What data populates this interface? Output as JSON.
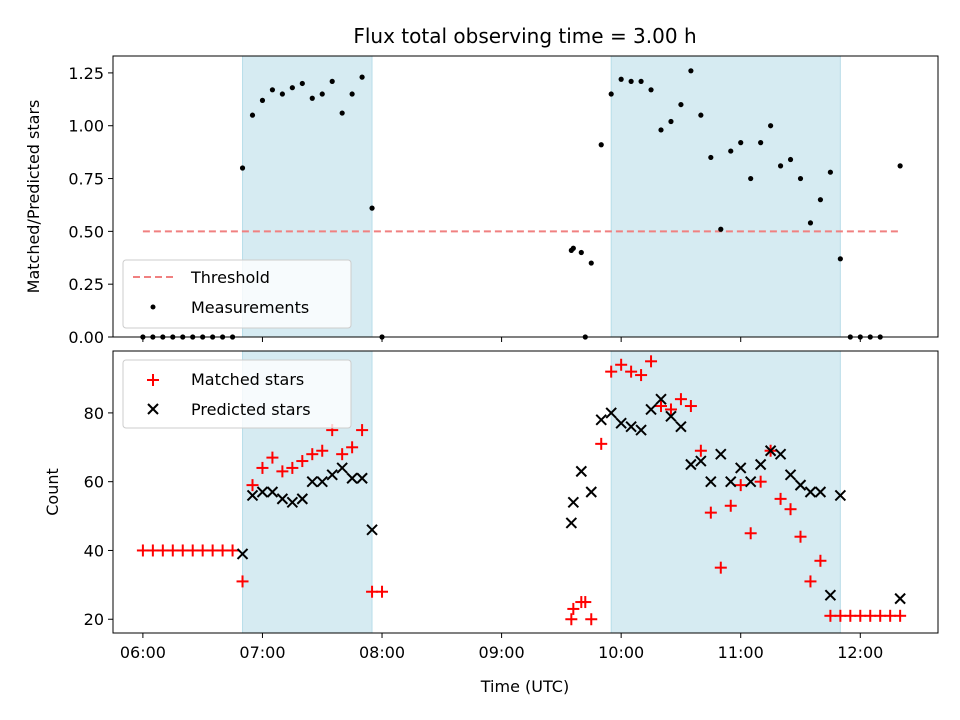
{
  "chart_data": [
    {
      "type": "scatter",
      "title": "Flux total observing time = 3.00 h",
      "xlabel": "",
      "ylabel": "Matched/Predicted stars",
      "xlim": [
        "05:45",
        "12:39"
      ],
      "ylim": [
        0,
        1.33
      ],
      "yticks": [
        0.0,
        0.25,
        0.5,
        0.75,
        1.0,
        1.25
      ],
      "ytick_labels": [
        "0.00",
        "0.25",
        "0.50",
        "0.75",
        "1.00",
        "1.25"
      ],
      "legend": "lower-left",
      "grid": false,
      "shaded_intervals": [
        [
          "06:50",
          "07:55"
        ],
        [
          "09:55",
          "11:50"
        ]
      ],
      "shade_color": "#add8e6",
      "threshold": {
        "name": "Threshold",
        "y": 0.5,
        "x": [
          "06:00",
          "12:20"
        ],
        "color": "#f08080"
      },
      "series": [
        {
          "name": "Measurements",
          "marker": "dot",
          "color": "#000000",
          "points": [
            [
              "06:00",
              0
            ],
            [
              "06:05",
              0
            ],
            [
              "06:10",
              0
            ],
            [
              "06:15",
              0
            ],
            [
              "06:20",
              0
            ],
            [
              "06:25",
              0
            ],
            [
              "06:30",
              0
            ],
            [
              "06:35",
              0
            ],
            [
              "06:40",
              0
            ],
            [
              "06:45",
              0
            ],
            [
              "06:50",
              0.8
            ],
            [
              "06:55",
              1.05
            ],
            [
              "07:00",
              1.12
            ],
            [
              "07:05",
              1.17
            ],
            [
              "07:10",
              1.15
            ],
            [
              "07:15",
              1.18
            ],
            [
              "07:20",
              1.2
            ],
            [
              "07:25",
              1.13
            ],
            [
              "07:30",
              1.15
            ],
            [
              "07:35",
              1.21
            ],
            [
              "07:40",
              1.06
            ],
            [
              "07:45",
              1.15
            ],
            [
              "07:50",
              1.23
            ],
            [
              "07:55",
              0.61
            ],
            [
              "08:00",
              0
            ],
            [
              "09:35",
              0.41
            ],
            [
              "09:36",
              0.42
            ],
            [
              "09:40",
              0.4
            ],
            [
              "09:42",
              0
            ],
            [
              "09:45",
              0.35
            ],
            [
              "09:50",
              0.91
            ],
            [
              "09:55",
              1.15
            ],
            [
              "10:00",
              1.22
            ],
            [
              "10:05",
              1.21
            ],
            [
              "10:10",
              1.21
            ],
            [
              "10:15",
              1.17
            ],
            [
              "10:20",
              0.98
            ],
            [
              "10:25",
              1.02
            ],
            [
              "10:30",
              1.1
            ],
            [
              "10:35",
              1.26
            ],
            [
              "10:40",
              1.05
            ],
            [
              "10:45",
              0.85
            ],
            [
              "10:50",
              0.51
            ],
            [
              "10:55",
              0.88
            ],
            [
              "11:00",
              0.92
            ],
            [
              "11:05",
              0.75
            ],
            [
              "11:10",
              0.92
            ],
            [
              "11:15",
              1.0
            ],
            [
              "11:20",
              0.81
            ],
            [
              "11:25",
              0.84
            ],
            [
              "11:30",
              0.75
            ],
            [
              "11:35",
              0.54
            ],
            [
              "11:40",
              0.65
            ],
            [
              "11:45",
              0.78
            ],
            [
              "11:50",
              0.37
            ],
            [
              "11:55",
              0
            ],
            [
              "12:00",
              0
            ],
            [
              "12:05",
              0
            ],
            [
              "12:10",
              0
            ],
            [
              "12:20",
              0.81
            ]
          ]
        }
      ]
    },
    {
      "type": "scatter",
      "title": "",
      "xlabel": "Time (UTC)",
      "ylabel": "Count",
      "xlim": [
        "05:45",
        "12:39"
      ],
      "ylim": [
        16,
        98
      ],
      "yticks": [
        20,
        40,
        60,
        80
      ],
      "xticks": [
        "06:00",
        "07:00",
        "08:00",
        "09:00",
        "10:00",
        "11:00",
        "12:00"
      ],
      "legend": "upper-left",
      "grid": false,
      "shaded_intervals": [
        [
          "06:50",
          "07:55"
        ],
        [
          "09:55",
          "11:50"
        ]
      ],
      "shade_color": "#add8e6",
      "series": [
        {
          "name": "Matched stars",
          "marker": "plus",
          "color": "#ff0000",
          "points": [
            [
              "06:00",
              40
            ],
            [
              "06:05",
              40
            ],
            [
              "06:10",
              40
            ],
            [
              "06:15",
              40
            ],
            [
              "06:20",
              40
            ],
            [
              "06:25",
              40
            ],
            [
              "06:30",
              40
            ],
            [
              "06:35",
              40
            ],
            [
              "06:40",
              40
            ],
            [
              "06:45",
              40
            ],
            [
              "06:50",
              31
            ],
            [
              "06:55",
              59
            ],
            [
              "07:00",
              64
            ],
            [
              "07:05",
              67
            ],
            [
              "07:10",
              63
            ],
            [
              "07:15",
              64
            ],
            [
              "07:20",
              66
            ],
            [
              "07:25",
              68
            ],
            [
              "07:30",
              69
            ],
            [
              "07:35",
              75
            ],
            [
              "07:40",
              68
            ],
            [
              "07:45",
              70
            ],
            [
              "07:50",
              75
            ],
            [
              "07:55",
              28
            ],
            [
              "08:00",
              28
            ],
            [
              "09:35",
              20
            ],
            [
              "09:36",
              23
            ],
            [
              "09:40",
              25
            ],
            [
              "09:42",
              25
            ],
            [
              "09:45",
              20
            ],
            [
              "09:50",
              71
            ],
            [
              "09:55",
              92
            ],
            [
              "10:00",
              94
            ],
            [
              "10:05",
              92
            ],
            [
              "10:10",
              91
            ],
            [
              "10:15",
              95
            ],
            [
              "10:20",
              82
            ],
            [
              "10:25",
              81
            ],
            [
              "10:30",
              84
            ],
            [
              "10:35",
              82
            ],
            [
              "10:40",
              69
            ],
            [
              "10:45",
              51
            ],
            [
              "10:50",
              35
            ],
            [
              "10:55",
              53
            ],
            [
              "11:00",
              59
            ],
            [
              "11:05",
              45
            ],
            [
              "11:10",
              60
            ],
            [
              "11:15",
              69
            ],
            [
              "11:20",
              55
            ],
            [
              "11:25",
              52
            ],
            [
              "11:30",
              44
            ],
            [
              "11:35",
              31
            ],
            [
              "11:40",
              37
            ],
            [
              "11:45",
              21
            ],
            [
              "11:50",
              21
            ],
            [
              "11:55",
              21
            ],
            [
              "12:00",
              21
            ],
            [
              "12:05",
              21
            ],
            [
              "12:10",
              21
            ],
            [
              "12:15",
              21
            ],
            [
              "12:20",
              21
            ]
          ]
        },
        {
          "name": "Predicted stars",
          "marker": "x",
          "color": "#000000",
          "points": [
            [
              "06:50",
              39
            ],
            [
              "06:55",
              56
            ],
            [
              "07:00",
              57
            ],
            [
              "07:05",
              57
            ],
            [
              "07:10",
              55
            ],
            [
              "07:15",
              54
            ],
            [
              "07:20",
              55
            ],
            [
              "07:25",
              60
            ],
            [
              "07:30",
              60
            ],
            [
              "07:35",
              62
            ],
            [
              "07:40",
              64
            ],
            [
              "07:45",
              61
            ],
            [
              "07:50",
              61
            ],
            [
              "07:55",
              46
            ],
            [
              "09:35",
              48
            ],
            [
              "09:36",
              54
            ],
            [
              "09:40",
              63
            ],
            [
              "09:45",
              57
            ],
            [
              "09:50",
              78
            ],
            [
              "09:55",
              80
            ],
            [
              "10:00",
              77
            ],
            [
              "10:05",
              76
            ],
            [
              "10:10",
              75
            ],
            [
              "10:15",
              81
            ],
            [
              "10:20",
              84
            ],
            [
              "10:25",
              79
            ],
            [
              "10:30",
              76
            ],
            [
              "10:35",
              65
            ],
            [
              "10:40",
              66
            ],
            [
              "10:45",
              60
            ],
            [
              "10:50",
              68
            ],
            [
              "10:55",
              60
            ],
            [
              "11:00",
              64
            ],
            [
              "11:05",
              60
            ],
            [
              "11:10",
              65
            ],
            [
              "11:15",
              69
            ],
            [
              "11:20",
              68
            ],
            [
              "11:25",
              62
            ],
            [
              "11:30",
              59
            ],
            [
              "11:35",
              57
            ],
            [
              "11:40",
              57
            ],
            [
              "11:45",
              27
            ],
            [
              "11:50",
              56
            ],
            [
              "12:20",
              26
            ]
          ]
        }
      ]
    }
  ]
}
